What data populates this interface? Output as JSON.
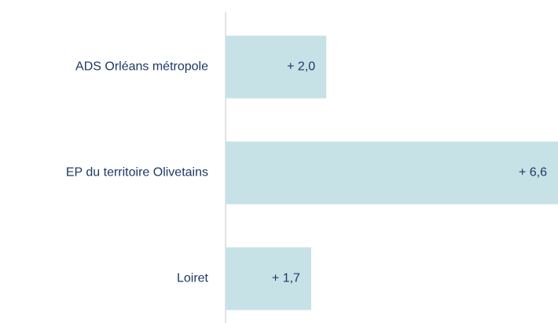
{
  "chart_data": {
    "type": "bar",
    "orientation": "horizontal",
    "categories": [
      "ADS Orléans métropole",
      "EP du territoire Olivetains",
      "Loiret"
    ],
    "values": [
      2.0,
      6.6,
      1.7
    ],
    "value_labels": [
      "+ 2,0",
      "+ 6,6",
      "+ 1,7"
    ],
    "color": "#c6e2e7",
    "xlim": [
      0,
      6.6
    ]
  }
}
